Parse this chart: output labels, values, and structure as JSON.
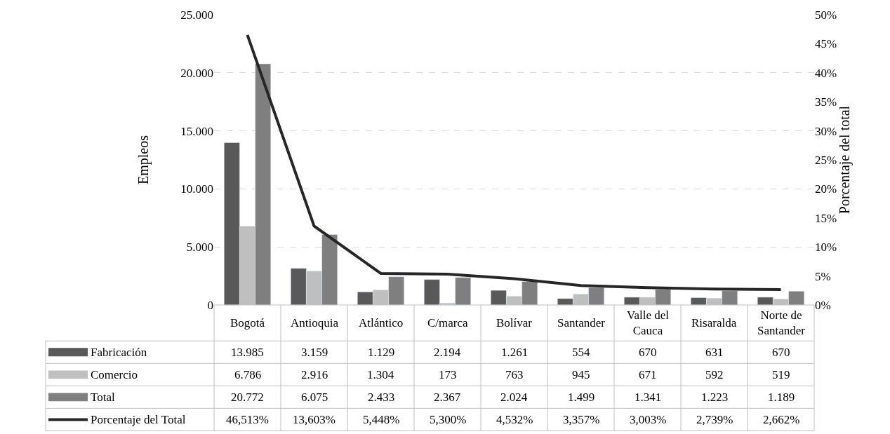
{
  "chart_data": {
    "type": "bar",
    "ylabel": "Empleos",
    "y2label": "Porcentaje del total",
    "categories": [
      "Bogotá",
      "Antioquia",
      "Atlántico",
      "C/marca",
      "Bolívar",
      "Santander",
      "Valle del Cauca",
      "Risaralda",
      "Norte de Santander"
    ],
    "series": [
      {
        "name": "Fabricación",
        "color": "#595959",
        "values": [
          13985,
          3159,
          1129,
          2194,
          1261,
          554,
          670,
          631,
          670
        ],
        "value_labels": [
          "13.985",
          "3.159",
          "1.129",
          "2.194",
          "1.261",
          "554",
          "670",
          "631",
          "670"
        ]
      },
      {
        "name": "Comercio",
        "color": "#bfbfbf",
        "values": [
          6786,
          2916,
          1304,
          173,
          763,
          945,
          671,
          592,
          519
        ],
        "value_labels": [
          "6.786",
          "2.916",
          "1.304",
          "173",
          "763",
          "945",
          "671",
          "592",
          "519"
        ]
      },
      {
        "name": "Total",
        "color": "#7f7f7f",
        "values": [
          20772,
          6075,
          2433,
          2367,
          2024,
          1499,
          1341,
          1223,
          1189
        ],
        "value_labels": [
          "20.772",
          "6.075",
          "2.433",
          "2.367",
          "2.024",
          "1.499",
          "1.341",
          "1.223",
          "1.189"
        ]
      },
      {
        "name": "Porcentaje del Total",
        "type": "line",
        "axis": "y2",
        "color": "#262626",
        "values": [
          46.513,
          13.603,
          5.448,
          5.3,
          4.532,
          3.357,
          3.003,
          2.739,
          2.662
        ],
        "value_labels": [
          "46,513%",
          "13,603%",
          "5,448%",
          "5,300%",
          "4,532%",
          "3,357%",
          "3,003%",
          "2,739%",
          "2,662%"
        ]
      }
    ],
    "ylim": [
      0,
      25000
    ],
    "yticks": [
      {
        "value": 0,
        "label": "0"
      },
      {
        "value": 5000,
        "label": "5.000"
      },
      {
        "value": 10000,
        "label": "10.000"
      },
      {
        "value": 15000,
        "label": "15.000"
      },
      {
        "value": 20000,
        "label": "20.000"
      },
      {
        "value": 25000,
        "label": "25.000"
      }
    ],
    "y2lim": [
      0,
      50
    ],
    "y2ticks": [
      {
        "value": 0,
        "label": "0%"
      },
      {
        "value": 5,
        "label": "5%"
      },
      {
        "value": 10,
        "label": "10%"
      },
      {
        "value": 15,
        "label": "15%"
      },
      {
        "value": 20,
        "label": "20%"
      },
      {
        "value": 25,
        "label": "25%"
      },
      {
        "value": 30,
        "label": "30%"
      },
      {
        "value": 35,
        "label": "35%"
      },
      {
        "value": 40,
        "label": "40%"
      },
      {
        "value": 45,
        "label": "45%"
      },
      {
        "value": 50,
        "label": "50%"
      }
    ],
    "grid": "y",
    "legend": "bottom left",
    "marker": "none",
    "line_style": "solid"
  }
}
